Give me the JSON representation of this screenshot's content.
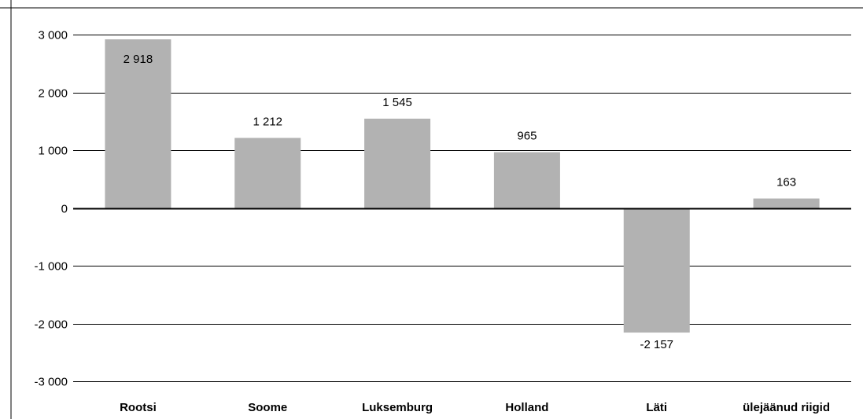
{
  "chart_data": {
    "type": "bar",
    "title": "",
    "xlabel": "",
    "ylabel": "",
    "categories": [
      "Rootsi",
      "Soome",
      "Luksemburg",
      "Holland",
      "Läti",
      "ülejäänud riigid"
    ],
    "values": [
      2918,
      1212,
      1545,
      965,
      -2157,
      163
    ],
    "data_labels": [
      "2 918",
      "1 212",
      "1 545",
      "965",
      "-2 157",
      "163"
    ],
    "ylim": [
      -3000,
      3000
    ],
    "yticks": [
      3000,
      2000,
      1000,
      0,
      -1000,
      -2000,
      -3000
    ],
    "ytick_labels": [
      "3 000",
      "2 000",
      "1 000",
      "0",
      "-1 000",
      "-2 000",
      "-3 000"
    ],
    "grid": true,
    "legend": "none",
    "colors": {
      "bar": "#b2b2b2",
      "grid": "#000000",
      "text": "#000000"
    }
  }
}
